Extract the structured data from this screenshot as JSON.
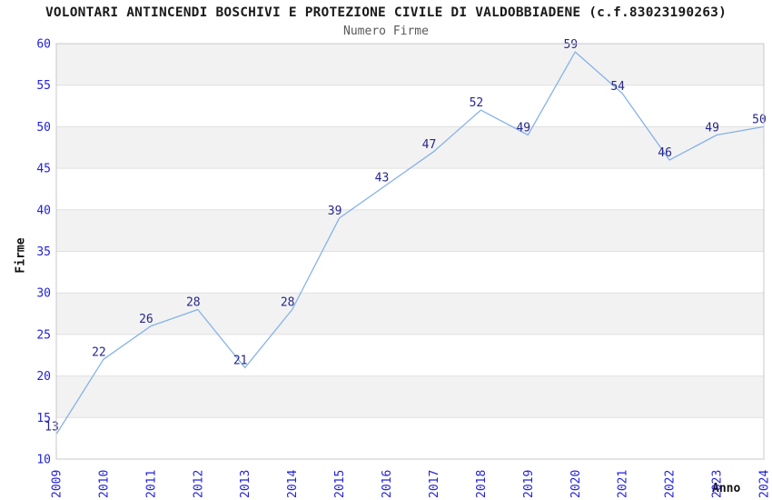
{
  "chart_data": {
    "type": "line",
    "title": "VOLONTARI ANTINCENDI BOSCHIVI E PROTEZIONE CIVILE DI VALDOBBIADENE (c.f.83023190263)",
    "subtitle": "Numero Firme",
    "xlabel": "Anno",
    "ylabel": "Firme",
    "categories": [
      "2009",
      "2010",
      "2011",
      "2012",
      "2013",
      "2014",
      "2015",
      "2016",
      "2017",
      "2018",
      "2019",
      "2020",
      "2021",
      "2022",
      "2023",
      "2024"
    ],
    "values": [
      13,
      22,
      26,
      28,
      21,
      28,
      39,
      43,
      47,
      52,
      49,
      59,
      54,
      46,
      49,
      50
    ],
    "ylim": [
      10,
      60
    ],
    "yticks": [
      10,
      15,
      20,
      25,
      30,
      35,
      40,
      45,
      50,
      55,
      60
    ],
    "ytick_step": 5,
    "point_labels_visible": true,
    "legend": "none",
    "grid": "horizontal-bands-alternating",
    "x_label_rotation": 90,
    "colors": {
      "line": "#85B2E8",
      "tick_label": "#2222DD",
      "point_label": "#26268C",
      "band_fill": "#F2F2F2",
      "gridline": "#E0E0E0",
      "plot_border": "#C8C8C8",
      "title_text": "#1A1A1A",
      "subtitle_text": "#595959",
      "axis_title_text": "#111111",
      "background": "#FFFFFF"
    }
  }
}
